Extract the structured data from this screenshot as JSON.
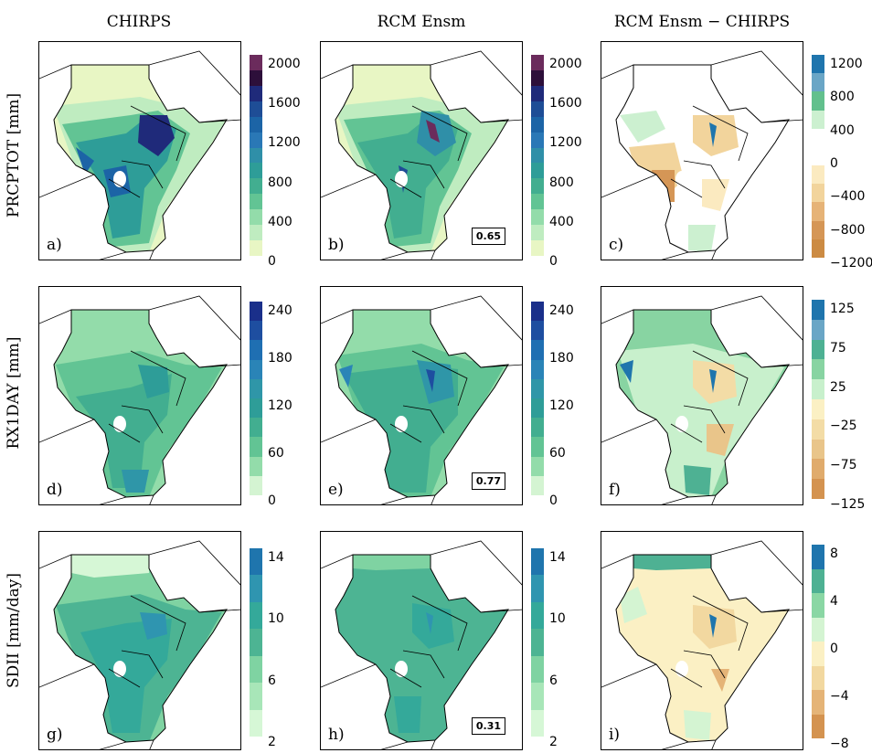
{
  "columns": [
    "CHIRPS",
    "RCM Ensm",
    "RCM Ensm − CHIRPS"
  ],
  "rows": [
    "PRCPTOT [mm]",
    "RX1DAY [mm]",
    "SDII [mm/day]"
  ],
  "panel_labels": [
    "a)",
    "b)",
    "c)",
    "d)",
    "e)",
    "f)",
    "g)",
    "h)",
    "i)"
  ],
  "scores": {
    "b": "0.65",
    "e": "0.77",
    "h": "0.31"
  },
  "colorbars": {
    "prcptot_abs": {
      "ticks": [
        "2000",
        "1600",
        "1200",
        "800",
        "400",
        "0"
      ],
      "colors": [
        "#6b2b5c",
        "#2d0f3a",
        "#1f2a7a",
        "#1e4d96",
        "#1c64a6",
        "#2a78b6",
        "#2f8fa8",
        "#2e9d98",
        "#42ae90",
        "#62c494",
        "#93dcaa",
        "#bfecc0",
        "#e8f6c4"
      ]
    },
    "prcptot_diff": {
      "ticks": [
        "1200",
        "800",
        "400",
        "0",
        "−400",
        "−800",
        "−1200"
      ],
      "colors": [
        "#1f75ad",
        "#6aa6c6",
        "#62c08d",
        "#ccf0d0",
        "#ffffff",
        "#ffffff",
        "#fbeac0",
        "#f2d49c",
        "#e6b377",
        "#d59656",
        "#cc8b43"
      ]
    },
    "rx1day_abs": {
      "ticks": [
        "240",
        "180",
        "120",
        "60",
        "0"
      ],
      "colors": [
        "#1a2f8a",
        "#1e4ea0",
        "#1f6fb2",
        "#2a84b7",
        "#2f96a8",
        "#2e9d98",
        "#42ae90",
        "#62c494",
        "#93dcaa",
        "#d4f4d2"
      ]
    },
    "rx1day_diff": {
      "ticks": [
        "125",
        "75",
        "25",
        "−25",
        "−75",
        "−125"
      ],
      "colors": [
        "#1f75ad",
        "#6aa6c6",
        "#4eb193",
        "#88d4a2",
        "#c8f0cc",
        "#fbf0c4",
        "#f3dca6",
        "#e9c58a",
        "#e0ab6c",
        "#d49350"
      ]
    },
    "sdii_abs": {
      "ticks": [
        "14",
        "10",
        "6",
        "2"
      ],
      "colors": [
        "#1f75ad",
        "#2f95b0",
        "#34a99a",
        "#4db493",
        "#7fd3a2",
        "#a8e6b8",
        "#d6f7d6"
      ]
    },
    "sdii_diff": {
      "ticks": [
        "8",
        "4",
        "0",
        "−4",
        "−8"
      ],
      "colors": [
        "#1f75ad",
        "#4eb193",
        "#8ad7a4",
        "#d4f4d2",
        "#fbf0c4",
        "#f2d8a0",
        "#e5b477",
        "#d49350"
      ]
    }
  }
}
